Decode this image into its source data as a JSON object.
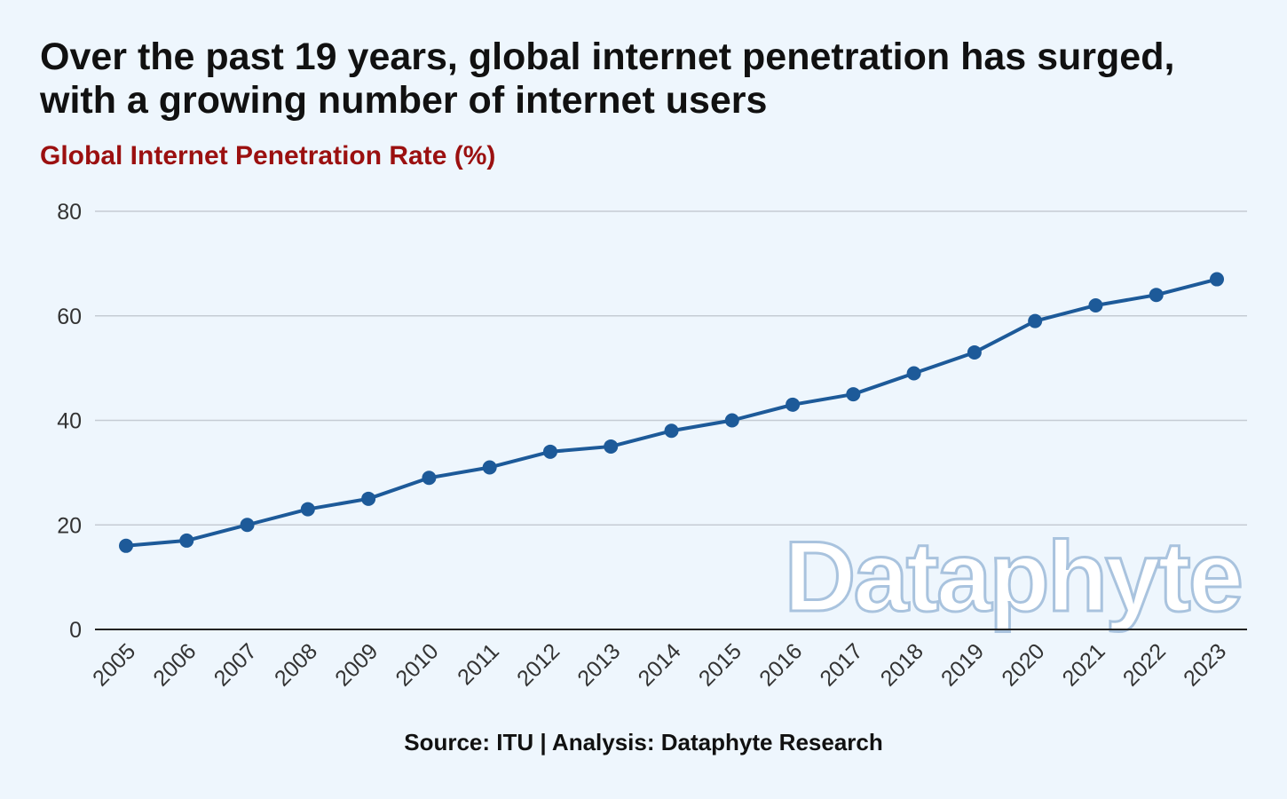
{
  "title": "Over the past 19 years, global internet penetration has surged, with a growing number of internet users",
  "source": "Source: ITU | Analysis: Dataphyte Research",
  "watermark": "Dataphyte",
  "colors": {
    "background": "#eef6fd",
    "line": "#1d5a99",
    "subtitle": "#9b1010",
    "gridline": "#c5ccd4",
    "axis": "#222222"
  },
  "chart_data": {
    "type": "line",
    "title": "Global Internet Penetration Rate (%)",
    "xlabel": "",
    "ylabel": "",
    "ylim": [
      0,
      80
    ],
    "yticks": [
      0,
      20,
      40,
      60,
      80
    ],
    "grid": true,
    "legend": "none",
    "categories": [
      "2005",
      "2006",
      "2007",
      "2008",
      "2009",
      "2010",
      "2011",
      "2012",
      "2013",
      "2014",
      "2015",
      "2016",
      "2017",
      "2018",
      "2019",
      "2020",
      "2021",
      "2022",
      "2023"
    ],
    "series": [
      {
        "values": [
          16,
          17,
          20,
          23,
          25,
          29,
          31,
          34,
          35,
          38,
          40,
          43,
          45,
          49,
          53,
          59,
          62,
          64,
          67
        ]
      }
    ]
  }
}
